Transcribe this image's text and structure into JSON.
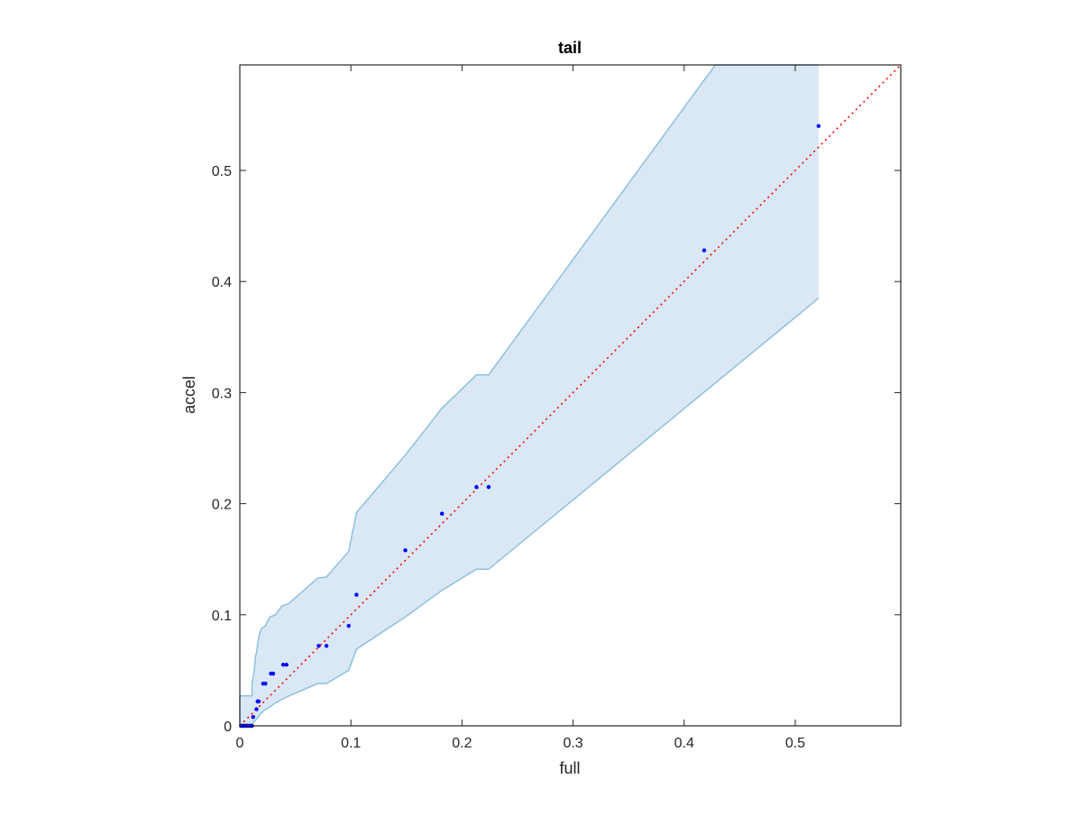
{
  "chart_data": {
    "type": "scatter",
    "title": "tail",
    "xlabel": "full",
    "ylabel": "accel",
    "xlim": [
      0,
      0.595
    ],
    "ylim": [
      0,
      0.595
    ],
    "xticks": [
      0,
      0.1,
      0.2,
      0.3,
      0.4,
      0.5
    ],
    "yticks": [
      0,
      0.1,
      0.2,
      0.3,
      0.4,
      0.5
    ],
    "xtick_labels": [
      "0",
      "0.1",
      "0.2",
      "0.3",
      "0.4",
      "0.5"
    ],
    "ytick_labels": [
      "0",
      "0.1",
      "0.2",
      "0.3",
      "0.4",
      "0.5"
    ],
    "grid": false,
    "colors": {
      "points": "#0000ff",
      "band_fill": "#d9e8f4",
      "band_edge": "#8fbfdf",
      "reference_line": "#ff0000"
    },
    "points": {
      "x": [
        0.001,
        0.002,
        0.003,
        0.004,
        0.005,
        0.006,
        0.007,
        0.008,
        0.009,
        0.01,
        0.011,
        0.012,
        0.015,
        0.016,
        0.017,
        0.021,
        0.023,
        0.028,
        0.03,
        0.039,
        0.042,
        0.071,
        0.078,
        0.098,
        0.105,
        0.149,
        0.182,
        0.213,
        0.224,
        0.418,
        0.521
      ],
      "y": [
        0.0,
        0.0,
        0.0,
        0.0,
        0.0,
        0.0,
        0.0,
        0.0,
        0.0,
        0.0,
        0.0,
        0.008,
        0.015,
        0.022,
        0.022,
        0.038,
        0.038,
        0.047,
        0.047,
        0.055,
        0.055,
        0.072,
        0.072,
        0.09,
        0.118,
        0.158,
        0.191,
        0.215,
        0.215,
        0.428,
        0.54
      ]
    },
    "band_upper": {
      "x": [
        0.0,
        0.0,
        0.011,
        0.011,
        0.013,
        0.014,
        0.015,
        0.017,
        0.019,
        0.023,
        0.027,
        0.032,
        0.038,
        0.044,
        0.07,
        0.078,
        0.098,
        0.105,
        0.15,
        0.182,
        0.213,
        0.224,
        0.428,
        0.521
      ],
      "y": [
        0.0,
        0.027,
        0.027,
        0.038,
        0.05,
        0.062,
        0.066,
        0.08,
        0.087,
        0.09,
        0.098,
        0.1,
        0.108,
        0.11,
        0.133,
        0.134,
        0.157,
        0.192,
        0.245,
        0.286,
        0.316,
        0.316,
        0.595,
        0.595
      ]
    },
    "band_lower": {
      "x": [
        0.0,
        0.007,
        0.011,
        0.012,
        0.015,
        0.018,
        0.022,
        0.027,
        0.031,
        0.04,
        0.07,
        0.078,
        0.098,
        0.105,
        0.149,
        0.182,
        0.213,
        0.224,
        0.521
      ],
      "y": [
        0.0,
        0.0,
        0.0,
        0.003,
        0.006,
        0.01,
        0.014,
        0.017,
        0.02,
        0.025,
        0.038,
        0.038,
        0.05,
        0.069,
        0.098,
        0.122,
        0.141,
        0.141,
        0.385
      ]
    },
    "reference_line": {
      "x": [
        0,
        0.595
      ],
      "y": [
        0,
        0.595
      ],
      "style": "dotted"
    }
  }
}
